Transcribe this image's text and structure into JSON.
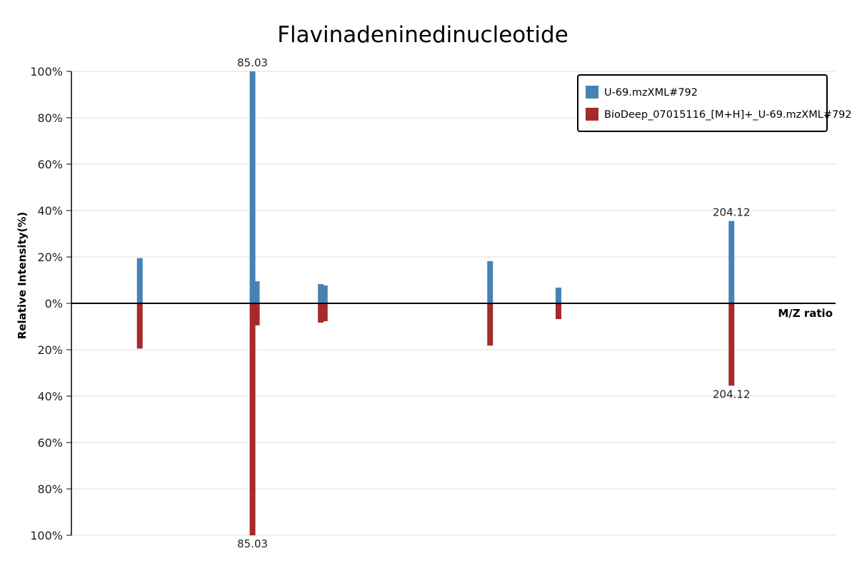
{
  "chart_data": {
    "type": "bar",
    "title": "Flavinadeninedinucleotide",
    "xlabel": "M/Z ratio",
    "ylabel": "Relative Intensity(%)",
    "ylim": [
      -100,
      100
    ],
    "yticks": [
      {
        "value": 100,
        "label": "100%"
      },
      {
        "value": 80,
        "label": "80%"
      },
      {
        "value": 60,
        "label": "60%"
      },
      {
        "value": 40,
        "label": "40%"
      },
      {
        "value": 20,
        "label": "20%"
      },
      {
        "value": 0,
        "label": "0%"
      },
      {
        "value": -20,
        "label": "20%"
      },
      {
        "value": -40,
        "label": "40%"
      },
      {
        "value": -60,
        "label": "60%"
      },
      {
        "value": -80,
        "label": "80%"
      },
      {
        "value": -100,
        "label": "100%"
      }
    ],
    "grid": true,
    "legend_position": "top-right",
    "series": [
      {
        "name": "U-69.mzXML#792",
        "color": "#4682b4",
        "direction": "up",
        "peaks": [
          {
            "mz": 57.0,
            "intensity": 19.5
          },
          {
            "mz": 85.03,
            "intensity": 100,
            "label": "85.03"
          },
          {
            "mz": 86.1,
            "intensity": 9.5
          },
          {
            "mz": 102.0,
            "intensity": 8.3
          },
          {
            "mz": 103.0,
            "intensity": 7.7
          },
          {
            "mz": 144.1,
            "intensity": 18.2
          },
          {
            "mz": 161.1,
            "intensity": 6.8
          },
          {
            "mz": 204.12,
            "intensity": 35.5,
            "label": "204.12"
          }
        ]
      },
      {
        "name": "BioDeep_07015116_[M+H]+_U-69.mzXML#792",
        "color": "#a52a2a",
        "direction": "down",
        "peaks": [
          {
            "mz": 57.0,
            "intensity": 19.5
          },
          {
            "mz": 85.03,
            "intensity": 100,
            "label": "85.03"
          },
          {
            "mz": 86.1,
            "intensity": 9.5
          },
          {
            "mz": 102.0,
            "intensity": 8.3
          },
          {
            "mz": 103.0,
            "intensity": 7.7
          },
          {
            "mz": 144.1,
            "intensity": 18.2
          },
          {
            "mz": 161.1,
            "intensity": 6.8
          },
          {
            "mz": 204.12,
            "intensity": 35.5,
            "label": "204.12"
          }
        ]
      }
    ]
  }
}
